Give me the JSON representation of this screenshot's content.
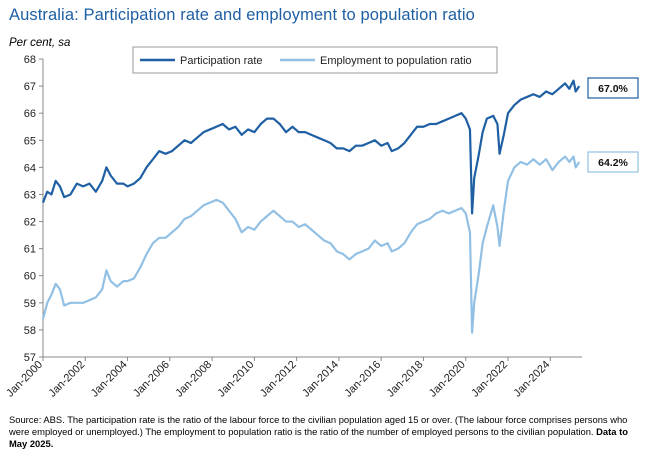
{
  "title": "Australia: Participation rate and employment to population ratio",
  "units": "Per cent, sa",
  "source": {
    "text": "Source: ABS.  The participation rate is the ratio of the labour force to the civilian population aged 15 or over.  (The labour force comprises persons who were employed or unemployed.)  The employment to population ratio is the ratio of the number of employed persons to the civilian population.",
    "bold": "Data to May 2025."
  },
  "colors": {
    "participation": "#1f5fa3",
    "employment": "#92c0e4",
    "axis": "#888888"
  },
  "chart_data": {
    "type": "line",
    "title": "Australia: Participation rate and employment to population ratio",
    "ylabel": "Per cent, sa",
    "ylim": [
      57,
      68
    ],
    "yticks": [
      57,
      58,
      59,
      60,
      61,
      62,
      63,
      64,
      65,
      66,
      67,
      68
    ],
    "xlim": [
      2000.0,
      2025.5
    ],
    "xticks": [
      {
        "value": 2000,
        "label": "Jan-2000"
      },
      {
        "value": 2002,
        "label": "Jan-2002"
      },
      {
        "value": 2004,
        "label": "Jan-2004"
      },
      {
        "value": 2006,
        "label": "Jan-2006"
      },
      {
        "value": 2008,
        "label": "Jan-2008"
      },
      {
        "value": 2010,
        "label": "Jan-2010"
      },
      {
        "value": 2012,
        "label": "Jan-2012"
      },
      {
        "value": 2014,
        "label": "Jan-2014"
      },
      {
        "value": 2016,
        "label": "Jan-2016"
      },
      {
        "value": 2018,
        "label": "Jan-2018"
      },
      {
        "value": 2020,
        "label": "Jan-2020"
      },
      {
        "value": 2022,
        "label": "Jan-2022"
      },
      {
        "value": 2024,
        "label": "Jan-2024"
      }
    ],
    "legend_placement": "top-center",
    "grid": false,
    "series": [
      {
        "name": "Participation rate",
        "color": "#1f5fa3",
        "end_label": "67.0%",
        "points": [
          [
            2000.0,
            62.7
          ],
          [
            2000.2,
            63.1
          ],
          [
            2000.4,
            63.0
          ],
          [
            2000.6,
            63.5
          ],
          [
            2000.8,
            63.3
          ],
          [
            2001.0,
            62.9
          ],
          [
            2001.3,
            63.0
          ],
          [
            2001.6,
            63.4
          ],
          [
            2001.9,
            63.3
          ],
          [
            2002.2,
            63.4
          ],
          [
            2002.5,
            63.1
          ],
          [
            2002.8,
            63.5
          ],
          [
            2003.0,
            64.0
          ],
          [
            2003.2,
            63.7
          ],
          [
            2003.5,
            63.4
          ],
          [
            2003.8,
            63.4
          ],
          [
            2004.0,
            63.3
          ],
          [
            2004.3,
            63.4
          ],
          [
            2004.6,
            63.6
          ],
          [
            2004.9,
            64.0
          ],
          [
            2005.2,
            64.3
          ],
          [
            2005.5,
            64.6
          ],
          [
            2005.8,
            64.5
          ],
          [
            2006.1,
            64.6
          ],
          [
            2006.4,
            64.8
          ],
          [
            2006.7,
            65.0
          ],
          [
            2007.0,
            64.9
          ],
          [
            2007.3,
            65.1
          ],
          [
            2007.6,
            65.3
          ],
          [
            2007.9,
            65.4
          ],
          [
            2008.2,
            65.5
          ],
          [
            2008.5,
            65.6
          ],
          [
            2008.8,
            65.4
          ],
          [
            2009.1,
            65.5
          ],
          [
            2009.4,
            65.2
          ],
          [
            2009.7,
            65.4
          ],
          [
            2010.0,
            65.3
          ],
          [
            2010.3,
            65.6
          ],
          [
            2010.6,
            65.8
          ],
          [
            2010.9,
            65.8
          ],
          [
            2011.2,
            65.6
          ],
          [
            2011.5,
            65.3
          ],
          [
            2011.8,
            65.5
          ],
          [
            2012.1,
            65.3
          ],
          [
            2012.4,
            65.3
          ],
          [
            2012.7,
            65.2
          ],
          [
            2013.0,
            65.1
          ],
          [
            2013.3,
            65.0
          ],
          [
            2013.6,
            64.9
          ],
          [
            2013.9,
            64.7
          ],
          [
            2014.2,
            64.7
          ],
          [
            2014.5,
            64.6
          ],
          [
            2014.8,
            64.8
          ],
          [
            2015.1,
            64.8
          ],
          [
            2015.4,
            64.9
          ],
          [
            2015.7,
            65.0
          ],
          [
            2016.0,
            64.8
          ],
          [
            2016.3,
            64.9
          ],
          [
            2016.5,
            64.6
          ],
          [
            2016.8,
            64.7
          ],
          [
            2017.1,
            64.9
          ],
          [
            2017.4,
            65.2
          ],
          [
            2017.7,
            65.5
          ],
          [
            2018.0,
            65.5
          ],
          [
            2018.3,
            65.6
          ],
          [
            2018.6,
            65.6
          ],
          [
            2018.9,
            65.7
          ],
          [
            2019.2,
            65.8
          ],
          [
            2019.5,
            65.9
          ],
          [
            2019.8,
            66.0
          ],
          [
            2020.0,
            65.8
          ],
          [
            2020.2,
            65.4
          ],
          [
            2020.3,
            62.3
          ],
          [
            2020.4,
            63.6
          ],
          [
            2020.6,
            64.4
          ],
          [
            2020.8,
            65.3
          ],
          [
            2021.0,
            65.8
          ],
          [
            2021.3,
            65.9
          ],
          [
            2021.5,
            65.6
          ],
          [
            2021.6,
            64.5
          ],
          [
            2021.8,
            65.2
          ],
          [
            2022.0,
            66.0
          ],
          [
            2022.3,
            66.3
          ],
          [
            2022.6,
            66.5
          ],
          [
            2022.9,
            66.6
          ],
          [
            2023.2,
            66.7
          ],
          [
            2023.5,
            66.6
          ],
          [
            2023.8,
            66.8
          ],
          [
            2024.1,
            66.7
          ],
          [
            2024.4,
            66.9
          ],
          [
            2024.7,
            67.1
          ],
          [
            2024.9,
            66.9
          ],
          [
            2025.1,
            67.2
          ],
          [
            2025.2,
            66.8
          ],
          [
            2025.37,
            67.0
          ]
        ]
      },
      {
        "name": "Employment to population ratio",
        "color": "#92c0e4",
        "end_label": "64.2%",
        "points": [
          [
            2000.0,
            58.4
          ],
          [
            2000.2,
            59.0
          ],
          [
            2000.4,
            59.3
          ],
          [
            2000.6,
            59.7
          ],
          [
            2000.8,
            59.5
          ],
          [
            2001.0,
            58.9
          ],
          [
            2001.3,
            59.0
          ],
          [
            2001.6,
            59.0
          ],
          [
            2001.9,
            59.0
          ],
          [
            2002.2,
            59.1
          ],
          [
            2002.5,
            59.2
          ],
          [
            2002.8,
            59.5
          ],
          [
            2003.0,
            60.2
          ],
          [
            2003.2,
            59.8
          ],
          [
            2003.5,
            59.6
          ],
          [
            2003.8,
            59.8
          ],
          [
            2004.0,
            59.8
          ],
          [
            2004.3,
            59.9
          ],
          [
            2004.6,
            60.3
          ],
          [
            2004.9,
            60.8
          ],
          [
            2005.2,
            61.2
          ],
          [
            2005.5,
            61.4
          ],
          [
            2005.8,
            61.4
          ],
          [
            2006.1,
            61.6
          ],
          [
            2006.4,
            61.8
          ],
          [
            2006.7,
            62.1
          ],
          [
            2007.0,
            62.2
          ],
          [
            2007.3,
            62.4
          ],
          [
            2007.6,
            62.6
          ],
          [
            2007.9,
            62.7
          ],
          [
            2008.2,
            62.8
          ],
          [
            2008.5,
            62.7
          ],
          [
            2008.8,
            62.4
          ],
          [
            2009.1,
            62.1
          ],
          [
            2009.4,
            61.6
          ],
          [
            2009.7,
            61.8
          ],
          [
            2010.0,
            61.7
          ],
          [
            2010.3,
            62.0
          ],
          [
            2010.6,
            62.2
          ],
          [
            2010.9,
            62.4
          ],
          [
            2011.2,
            62.2
          ],
          [
            2011.5,
            62.0
          ],
          [
            2011.8,
            62.0
          ],
          [
            2012.1,
            61.8
          ],
          [
            2012.4,
            61.9
          ],
          [
            2012.7,
            61.7
          ],
          [
            2013.0,
            61.5
          ],
          [
            2013.3,
            61.3
          ],
          [
            2013.6,
            61.2
          ],
          [
            2013.9,
            60.9
          ],
          [
            2014.2,
            60.8
          ],
          [
            2014.5,
            60.6
          ],
          [
            2014.8,
            60.8
          ],
          [
            2015.1,
            60.9
          ],
          [
            2015.4,
            61.0
          ],
          [
            2015.7,
            61.3
          ],
          [
            2016.0,
            61.1
          ],
          [
            2016.3,
            61.2
          ],
          [
            2016.5,
            60.9
          ],
          [
            2016.8,
            61.0
          ],
          [
            2017.1,
            61.2
          ],
          [
            2017.4,
            61.6
          ],
          [
            2017.7,
            61.9
          ],
          [
            2018.0,
            62.0
          ],
          [
            2018.3,
            62.1
          ],
          [
            2018.6,
            62.3
          ],
          [
            2018.9,
            62.4
          ],
          [
            2019.2,
            62.3
          ],
          [
            2019.5,
            62.4
          ],
          [
            2019.8,
            62.5
          ],
          [
            2020.0,
            62.3
          ],
          [
            2020.2,
            61.6
          ],
          [
            2020.3,
            57.9
          ],
          [
            2020.4,
            59.0
          ],
          [
            2020.6,
            60.0
          ],
          [
            2020.8,
            61.2
          ],
          [
            2021.0,
            61.8
          ],
          [
            2021.3,
            62.6
          ],
          [
            2021.5,
            61.8
          ],
          [
            2021.6,
            61.1
          ],
          [
            2021.8,
            62.4
          ],
          [
            2022.0,
            63.5
          ],
          [
            2022.3,
            64.0
          ],
          [
            2022.6,
            64.2
          ],
          [
            2022.9,
            64.1
          ],
          [
            2023.2,
            64.3
          ],
          [
            2023.5,
            64.1
          ],
          [
            2023.8,
            64.3
          ],
          [
            2024.1,
            63.9
          ],
          [
            2024.4,
            64.2
          ],
          [
            2024.7,
            64.4
          ],
          [
            2024.9,
            64.2
          ],
          [
            2025.1,
            64.4
          ],
          [
            2025.2,
            64.0
          ],
          [
            2025.37,
            64.2
          ]
        ]
      }
    ]
  }
}
